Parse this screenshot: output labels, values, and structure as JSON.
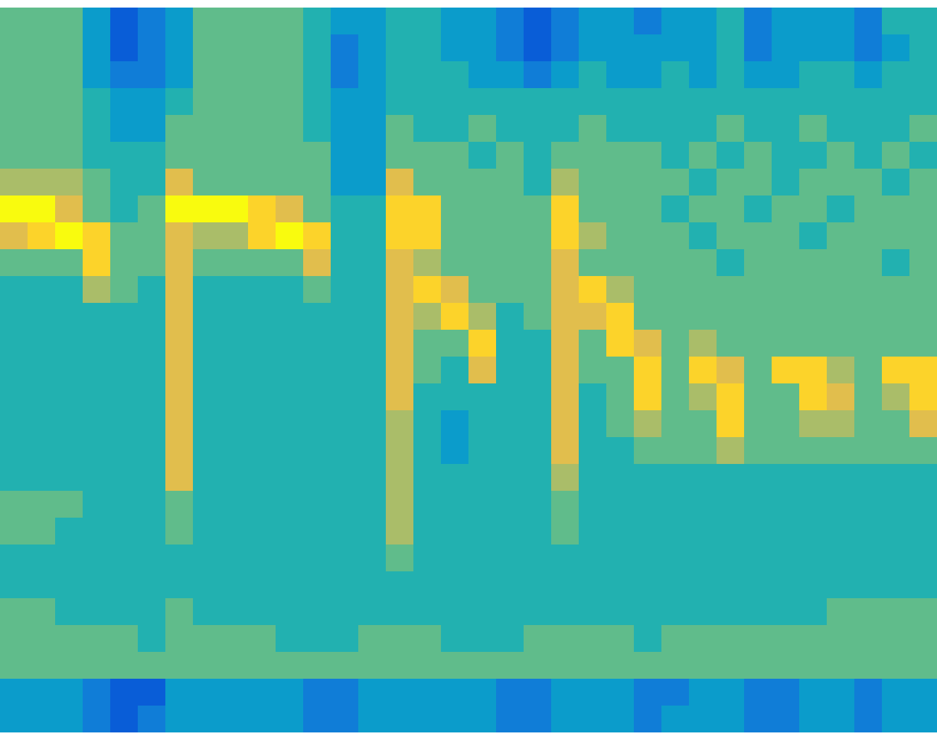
{
  "chart_data": {
    "type": "heatmap",
    "tick_labels": false,
    "zlim": [
      0,
      9
    ],
    "cells": [
      [
        5,
        5,
        5,
        3,
        1,
        2,
        3,
        5,
        5,
        5,
        5,
        4,
        3,
        3,
        4,
        4,
        3,
        3,
        2,
        1,
        2,
        3,
        3,
        2,
        3,
        3,
        4,
        2,
        3,
        3,
        3,
        2,
        4,
        4
      ],
      [
        5,
        5,
        5,
        3,
        1,
        2,
        3,
        5,
        5,
        5,
        5,
        4,
        2,
        3,
        4,
        4,
        3,
        3,
        2,
        1,
        2,
        3,
        3,
        3,
        3,
        3,
        4,
        2,
        3,
        3,
        3,
        2,
        3,
        4
      ],
      [
        5,
        5,
        5,
        3,
        2,
        2,
        3,
        5,
        5,
        5,
        5,
        4,
        2,
        3,
        4,
        4,
        4,
        3,
        3,
        2,
        3,
        4,
        3,
        3,
        4,
        3,
        4,
        3,
        3,
        4,
        4,
        3,
        4,
        4
      ],
      [
        5,
        5,
        5,
        4,
        3,
        3,
        4,
        5,
        5,
        5,
        5,
        4,
        3,
        3,
        4,
        4,
        4,
        4,
        4,
        4,
        4,
        4,
        4,
        4,
        4,
        4,
        4,
        4,
        4,
        4,
        4,
        4,
        4,
        4
      ],
      [
        5,
        5,
        5,
        4,
        3,
        3,
        5,
        5,
        5,
        5,
        5,
        4,
        3,
        3,
        5,
        4,
        4,
        5,
        4,
        4,
        4,
        5,
        4,
        4,
        4,
        4,
        5,
        4,
        4,
        5,
        4,
        4,
        4,
        5
      ],
      [
        5,
        5,
        5,
        4,
        4,
        4,
        5,
        5,
        5,
        5,
        5,
        5,
        3,
        3,
        5,
        5,
        5,
        4,
        5,
        4,
        5,
        5,
        5,
        5,
        4,
        5,
        4,
        5,
        4,
        4,
        5,
        4,
        5,
        4
      ],
      [
        6,
        6,
        6,
        5,
        4,
        4,
        7,
        5,
        5,
        5,
        5,
        5,
        3,
        3,
        7,
        5,
        5,
        5,
        5,
        4,
        6,
        5,
        5,
        5,
        5,
        4,
        5,
        5,
        4,
        5,
        5,
        5,
        4,
        5
      ],
      [
        9,
        9,
        7,
        5,
        4,
        5,
        9,
        9,
        9,
        8,
        7,
        5,
        4,
        4,
        8,
        8,
        5,
        5,
        5,
        5,
        8,
        5,
        5,
        5,
        4,
        5,
        5,
        4,
        5,
        5,
        4,
        5,
        5,
        5
      ],
      [
        7,
        8,
        9,
        8,
        5,
        5,
        7,
        6,
        6,
        8,
        9,
        8,
        4,
        4,
        8,
        8,
        5,
        5,
        5,
        5,
        8,
        6,
        5,
        5,
        5,
        4,
        5,
        5,
        5,
        4,
        5,
        5,
        5,
        5
      ],
      [
        5,
        5,
        5,
        8,
        5,
        5,
        7,
        5,
        5,
        5,
        5,
        7,
        4,
        4,
        7,
        6,
        5,
        5,
        5,
        5,
        7,
        5,
        5,
        5,
        5,
        5,
        4,
        5,
        5,
        5,
        5,
        5,
        4,
        5
      ],
      [
        4,
        4,
        4,
        6,
        5,
        4,
        7,
        4,
        4,
        4,
        4,
        5,
        4,
        4,
        7,
        8,
        7,
        5,
        5,
        5,
        7,
        8,
        6,
        5,
        5,
        5,
        5,
        5,
        5,
        5,
        5,
        5,
        5,
        5
      ],
      [
        4,
        4,
        4,
        4,
        4,
        4,
        7,
        4,
        4,
        4,
        4,
        4,
        4,
        4,
        7,
        6,
        8,
        6,
        4,
        5,
        7,
        7,
        8,
        5,
        5,
        5,
        5,
        5,
        5,
        5,
        5,
        5,
        5,
        5
      ],
      [
        4,
        4,
        4,
        4,
        4,
        4,
        7,
        4,
        4,
        4,
        4,
        4,
        4,
        4,
        7,
        5,
        5,
        8,
        4,
        4,
        7,
        5,
        8,
        7,
        5,
        6,
        5,
        5,
        5,
        5,
        5,
        5,
        5,
        5
      ],
      [
        4,
        4,
        4,
        4,
        4,
        4,
        7,
        4,
        4,
        4,
        4,
        4,
        4,
        4,
        7,
        5,
        4,
        7,
        4,
        4,
        7,
        5,
        5,
        8,
        5,
        8,
        7,
        5,
        8,
        8,
        6,
        5,
        8,
        8
      ],
      [
        4,
        4,
        4,
        4,
        4,
        4,
        7,
        4,
        4,
        4,
        4,
        4,
        4,
        4,
        7,
        4,
        4,
        4,
        4,
        4,
        7,
        4,
        5,
        8,
        5,
        6,
        8,
        5,
        5,
        8,
        7,
        5,
        6,
        8
      ],
      [
        4,
        4,
        4,
        4,
        4,
        4,
        7,
        4,
        4,
        4,
        4,
        4,
        4,
        4,
        6,
        4,
        3,
        4,
        4,
        4,
        7,
        4,
        5,
        6,
        5,
        5,
        8,
        5,
        5,
        6,
        6,
        5,
        5,
        7
      ],
      [
        4,
        4,
        4,
        4,
        4,
        4,
        7,
        4,
        4,
        4,
        4,
        4,
        4,
        4,
        6,
        4,
        3,
        4,
        4,
        4,
        7,
        4,
        4,
        5,
        5,
        5,
        6,
        5,
        5,
        5,
        5,
        5,
        5,
        5
      ],
      [
        4,
        4,
        4,
        4,
        4,
        4,
        7,
        4,
        4,
        4,
        4,
        4,
        4,
        4,
        6,
        4,
        4,
        4,
        4,
        4,
        6,
        4,
        4,
        4,
        4,
        4,
        4,
        4,
        4,
        4,
        4,
        4,
        4,
        4
      ],
      [
        5,
        5,
        5,
        4,
        4,
        4,
        5,
        4,
        4,
        4,
        4,
        4,
        4,
        4,
        6,
        4,
        4,
        4,
        4,
        4,
        5,
        4,
        4,
        4,
        4,
        4,
        4,
        4,
        4,
        4,
        4,
        4,
        4,
        4
      ],
      [
        5,
        5,
        4,
        4,
        4,
        4,
        5,
        4,
        4,
        4,
        4,
        4,
        4,
        4,
        6,
        4,
        4,
        4,
        4,
        4,
        5,
        4,
        4,
        4,
        4,
        4,
        4,
        4,
        4,
        4,
        4,
        4,
        4,
        4
      ],
      [
        4,
        4,
        4,
        4,
        4,
        4,
        4,
        4,
        4,
        4,
        4,
        4,
        4,
        4,
        5,
        4,
        4,
        4,
        4,
        4,
        4,
        4,
        4,
        4,
        4,
        4,
        4,
        4,
        4,
        4,
        4,
        4,
        4,
        4
      ],
      [
        4,
        4,
        4,
        4,
        4,
        4,
        4,
        4,
        4,
        4,
        4,
        4,
        4,
        4,
        4,
        4,
        4,
        4,
        4,
        4,
        4,
        4,
        4,
        4,
        4,
        4,
        4,
        4,
        4,
        4,
        4,
        4,
        4,
        4
      ],
      [
        5,
        5,
        4,
        4,
        4,
        4,
        5,
        4,
        4,
        4,
        4,
        4,
        4,
        4,
        4,
        4,
        4,
        4,
        4,
        4,
        4,
        4,
        4,
        4,
        4,
        4,
        4,
        4,
        4,
        4,
        5,
        5,
        5,
        5
      ],
      [
        5,
        5,
        5,
        5,
        5,
        4,
        5,
        5,
        5,
        5,
        4,
        4,
        4,
        5,
        5,
        5,
        4,
        4,
        4,
        5,
        5,
        5,
        5,
        4,
        5,
        5,
        5,
        5,
        5,
        5,
        5,
        5,
        5,
        5
      ],
      [
        5,
        5,
        5,
        5,
        5,
        5,
        5,
        5,
        5,
        5,
        5,
        5,
        5,
        5,
        5,
        5,
        5,
        5,
        5,
        5,
        5,
        5,
        5,
        5,
        5,
        5,
        5,
        5,
        5,
        5,
        5,
        5,
        5,
        5
      ],
      [
        3,
        3,
        3,
        2,
        1,
        1,
        3,
        3,
        3,
        3,
        3,
        2,
        2,
        3,
        3,
        3,
        3,
        3,
        2,
        2,
        3,
        3,
        3,
        2,
        2,
        3,
        3,
        2,
        2,
        3,
        3,
        2,
        3,
        3
      ],
      [
        3,
        3,
        3,
        2,
        1,
        2,
        3,
        3,
        3,
        3,
        3,
        2,
        2,
        3,
        3,
        3,
        3,
        3,
        2,
        2,
        3,
        3,
        3,
        2,
        3,
        3,
        3,
        2,
        2,
        3,
        3,
        2,
        3,
        3
      ]
    ]
  }
}
